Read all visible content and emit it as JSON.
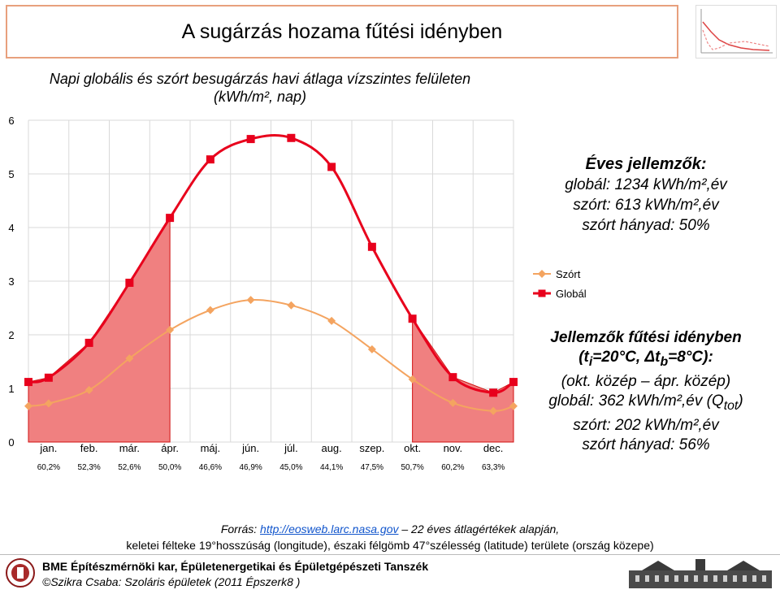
{
  "title": "A sugárzás hozama fűtési idényben",
  "subtitle_line1": "Napi globális és szórt besugárzás havi átlaga vízszintes felületen",
  "subtitle_line2": "(kWh/m², nap)",
  "annual": {
    "heading": "Éves jellemzők:",
    "global": "globál: 1234 kWh/m²,év",
    "diffuse": "szórt: 613 kWh/m²,év",
    "ratio": "szórt hányad: 50%"
  },
  "heating": {
    "heading": "Jellemzők fűtési idényben",
    "params_pre": "(t",
    "params_i": "i",
    "params_mid": "=20°C, Δt",
    "params_b": "b",
    "params_post": "=8°C):",
    "period": "(okt. közép – ápr. közép)",
    "global_pre": "globál: 362 kWh/m²,év (Q",
    "global_sub": "tot",
    "global_post": ")",
    "diffuse": "szórt: 202 kWh/m²,év",
    "ratio": "szórt hányad: 56%"
  },
  "source": {
    "prefix": "Forrás: ",
    "link": "http://eosweb.larc.nasa.gov",
    "suffix": " – 22 éves átlagértékek alapján,",
    "line2": "keletei félteke  19°hosszúság (longitude), északi félgömb 47°szélesség (latitude) területe (ország közepe)"
  },
  "footer": {
    "line1": "BME Építészmérnöki kar, Épületenergetikai és Épületgépészeti Tanszék",
    "line2": "©Szikra Csaba: Szoláris épületek  (2011 Épszerk8 )"
  },
  "colors": {
    "global": "#e8001c",
    "global_fill": "#f08080",
    "diffuse": "#f4a460",
    "grid": "#d9d9d9",
    "title_border": "#e8a07d"
  },
  "chart_data": {
    "type": "line",
    "categories": [
      "jan.",
      "feb.",
      "már.",
      "ápr.",
      "máj.",
      "jún.",
      "júl.",
      "aug.",
      "szep.",
      "okt.",
      "nov.",
      "dec."
    ],
    "percent_labels": [
      "60,2%",
      "52,3%",
      "52,6%",
      "50,0%",
      "46,6%",
      "46,9%",
      "45,0%",
      "44,1%",
      "47,5%",
      "50,7%",
      "60,2%",
      "63,3%"
    ],
    "series": [
      {
        "name": "Szórt",
        "values": [
          0.72,
          0.97,
          1.56,
          2.09,
          2.46,
          2.65,
          2.55,
          2.26,
          1.73,
          1.17,
          0.73,
          0.58
        ]
      },
      {
        "name": "Globál",
        "values": [
          1.2,
          1.85,
          2.97,
          4.18,
          5.27,
          5.65,
          5.67,
          5.13,
          3.64,
          2.3,
          1.21,
          0.92
        ]
      }
    ],
    "edge_values": {
      "Szórt": [
        0.67,
        0.67
      ],
      "Globál": [
        1.12,
        1.12
      ]
    },
    "ylim": [
      0,
      6
    ],
    "yticks": [
      0,
      1,
      2,
      3,
      4,
      5,
      6
    ],
    "grid": true,
    "legend_position": "right",
    "heating_season_shaded": [
      "jan.",
      "feb.",
      "már.",
      "ápr.",
      "okt.",
      "nov.",
      "dec."
    ]
  }
}
